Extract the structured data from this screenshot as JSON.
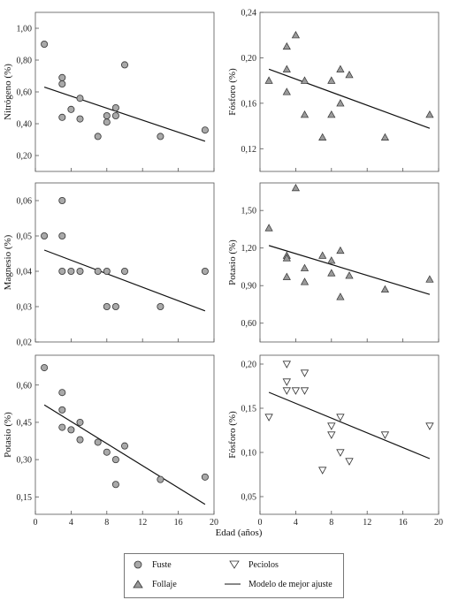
{
  "shared_xlabel": "Edad (años)",
  "legend": [
    {
      "label": "Fuste",
      "marker": "circle"
    },
    {
      "label": "Peciolos",
      "marker": "triangle-down"
    },
    {
      "label": "Follaje",
      "marker": "triangle-up"
    },
    {
      "label": "Modelo de mejor ajuste",
      "marker": "line"
    }
  ],
  "colors": {
    "circle_fill": "#a9a9a9",
    "triangle_fill": "#9a9a9a",
    "open_fill": "#ffffff",
    "stroke": "#333333",
    "line": "#111111"
  },
  "chart_data": [
    {
      "type": "scatter",
      "ylabel": "Nitrógeno (%)",
      "marker": "circle",
      "xlim": [
        0,
        20
      ],
      "ylim": [
        0.1,
        1.1
      ],
      "xticks": [],
      "yticks": [
        "0,20",
        "0,40",
        "0,60",
        "0,80",
        "1,00"
      ],
      "ytick_values": [
        0.2,
        0.4,
        0.6,
        0.8,
        1.0
      ],
      "points": [
        [
          1,
          0.9
        ],
        [
          3,
          0.69
        ],
        [
          3,
          0.65
        ],
        [
          3,
          0.44
        ],
        [
          4,
          0.49
        ],
        [
          5,
          0.56
        ],
        [
          5,
          0.43
        ],
        [
          7,
          0.32
        ],
        [
          8,
          0.45
        ],
        [
          8,
          0.41
        ],
        [
          9,
          0.5
        ],
        [
          9,
          0.45
        ],
        [
          10,
          0.77
        ],
        [
          14,
          0.32
        ],
        [
          19,
          0.36
        ]
      ],
      "fit": [
        [
          1,
          0.63
        ],
        [
          19,
          0.29
        ]
      ]
    },
    {
      "type": "scatter",
      "ylabel": "Fósforo (%)",
      "marker": "triangle-up",
      "xlim": [
        0,
        20
      ],
      "ylim": [
        0.1,
        0.24
      ],
      "xticks": [],
      "yticks": [
        "0,12",
        "0,16",
        "0,20",
        "0,24"
      ],
      "ytick_values": [
        0.12,
        0.16,
        0.2,
        0.24
      ],
      "points": [
        [
          1,
          0.18
        ],
        [
          3,
          0.21
        ],
        [
          3,
          0.19
        ],
        [
          3,
          0.17
        ],
        [
          4,
          0.22
        ],
        [
          5,
          0.18
        ],
        [
          5,
          0.15
        ],
        [
          7,
          0.13
        ],
        [
          8,
          0.18
        ],
        [
          8,
          0.15
        ],
        [
          9,
          0.19
        ],
        [
          9,
          0.16
        ],
        [
          10,
          0.185
        ],
        [
          14,
          0.13
        ],
        [
          19,
          0.15
        ]
      ],
      "fit": [
        [
          1,
          0.19
        ],
        [
          19,
          0.138
        ]
      ]
    },
    {
      "type": "scatter",
      "ylabel": "Magnesio (%)",
      "marker": "circle",
      "xlim": [
        0,
        20
      ],
      "ylim": [
        0.02,
        0.065
      ],
      "xticks": [],
      "yticks": [
        "0,02",
        "0,03",
        "0,04",
        "0,05",
        "0,06"
      ],
      "ytick_values": [
        0.02,
        0.03,
        0.04,
        0.05,
        0.06
      ],
      "points": [
        [
          1,
          0.05
        ],
        [
          3,
          0.06
        ],
        [
          3,
          0.05
        ],
        [
          3,
          0.04
        ],
        [
          4,
          0.04
        ],
        [
          5,
          0.04
        ],
        [
          7,
          0.04
        ],
        [
          8,
          0.04
        ],
        [
          8,
          0.03
        ],
        [
          9,
          0.03
        ],
        [
          10,
          0.04
        ],
        [
          14,
          0.03
        ],
        [
          19,
          0.04
        ]
      ],
      "fit": [
        [
          1,
          0.046
        ],
        [
          19,
          0.0288
        ]
      ]
    },
    {
      "type": "scatter",
      "ylabel": "Potasio (%)",
      "marker": "triangle-up",
      "xlim": [
        0,
        20
      ],
      "ylim": [
        0.45,
        1.72
      ],
      "xticks": [],
      "yticks": [
        "0,60",
        "0,90",
        "1,20",
        "1,50"
      ],
      "ytick_values": [
        0.6,
        0.9,
        1.2,
        1.5
      ],
      "points": [
        [
          1,
          1.36
        ],
        [
          3,
          1.14
        ],
        [
          3,
          1.12
        ],
        [
          3,
          0.97
        ],
        [
          4,
          1.68
        ],
        [
          5,
          1.04
        ],
        [
          5,
          0.93
        ],
        [
          7,
          1.14
        ],
        [
          8,
          1.1
        ],
        [
          8,
          1.0
        ],
        [
          9,
          1.18
        ],
        [
          9,
          0.81
        ],
        [
          10,
          0.98
        ],
        [
          14,
          0.87
        ],
        [
          19,
          0.95
        ]
      ],
      "fit": [
        [
          1,
          1.22
        ],
        [
          19,
          0.83
        ]
      ]
    },
    {
      "type": "scatter",
      "ylabel": "Potasio (%)",
      "marker": "circle",
      "xlim": [
        0,
        20
      ],
      "ylim": [
        0.08,
        0.72
      ],
      "xticks": [
        "0",
        "4",
        "8",
        "12",
        "16",
        "20"
      ],
      "xtick_values": [
        0,
        4,
        8,
        12,
        16,
        20
      ],
      "yticks": [
        "0,15",
        "0,30",
        "0,45",
        "0,60"
      ],
      "ytick_values": [
        0.15,
        0.3,
        0.45,
        0.6
      ],
      "points": [
        [
          1,
          0.67
        ],
        [
          3,
          0.57
        ],
        [
          3,
          0.5
        ],
        [
          3,
          0.43
        ],
        [
          4,
          0.42
        ],
        [
          5,
          0.45
        ],
        [
          5,
          0.38
        ],
        [
          7,
          0.37
        ],
        [
          8,
          0.33
        ],
        [
          9,
          0.3
        ],
        [
          9,
          0.2
        ],
        [
          10,
          0.355
        ],
        [
          14,
          0.22
        ],
        [
          19,
          0.23
        ]
      ],
      "fit": [
        [
          1,
          0.52
        ],
        [
          19,
          0.12
        ]
      ]
    },
    {
      "type": "scatter",
      "ylabel": "Fósforo (%)",
      "marker": "triangle-down",
      "xlim": [
        0,
        20
      ],
      "ylim": [
        0.03,
        0.21
      ],
      "xticks": [
        "0",
        "4",
        "8",
        "12",
        "16",
        "20"
      ],
      "xtick_values": [
        0,
        4,
        8,
        12,
        16,
        20
      ],
      "yticks": [
        "0,05",
        "0,10",
        "0,15",
        "0,20"
      ],
      "ytick_values": [
        0.05,
        0.1,
        0.15,
        0.2
      ],
      "points": [
        [
          1,
          0.14
        ],
        [
          3,
          0.2
        ],
        [
          3,
          0.18
        ],
        [
          3,
          0.17
        ],
        [
          4,
          0.17
        ],
        [
          5,
          0.19
        ],
        [
          5,
          0.17
        ],
        [
          7,
          0.08
        ],
        [
          8,
          0.13
        ],
        [
          8,
          0.12
        ],
        [
          9,
          0.14
        ],
        [
          9,
          0.1
        ],
        [
          10,
          0.09
        ],
        [
          14,
          0.12
        ],
        [
          19,
          0.13
        ]
      ],
      "fit": [
        [
          1,
          0.168
        ],
        [
          19,
          0.093
        ]
      ]
    }
  ]
}
